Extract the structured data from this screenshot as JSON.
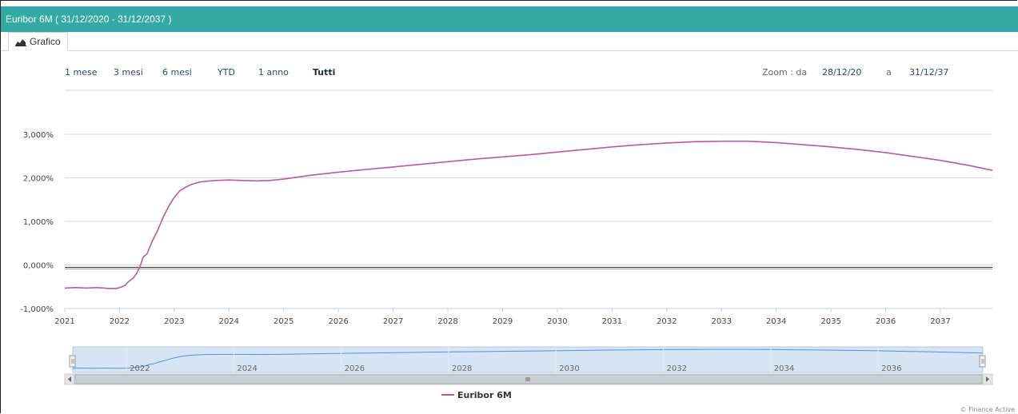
{
  "window": {
    "title": "Euribor 6M ( 31/12/2020 - 31/12/2037 )"
  },
  "tabs": [
    {
      "label": "Grafico",
      "icon": "area-chart-icon",
      "active": true
    }
  ],
  "range_selector": {
    "buttons": [
      "1 mese",
      "3 mesi",
      "6 mesi",
      "YTD",
      "1 anno",
      "Tutti"
    ],
    "active": "Tutti",
    "zoom_label": "Zoom : da",
    "from": "28/12/20",
    "to_label": "a",
    "to": "31/12/37"
  },
  "colors": {
    "header": "#33aaa4",
    "series": "#c0569b",
    "navigator_line": "#5b8fd1",
    "navigator_fill": "#d6e4f5"
  },
  "chart_data": {
    "type": "line",
    "title": "",
    "xlabel": "",
    "ylabel": "",
    "ylim": [
      -1.0,
      3.0
    ],
    "yticks": [
      "-1,000%",
      "0,000%",
      "1,000%",
      "2,000%",
      "3,000%"
    ],
    "yticks_values": [
      -1,
      0,
      1,
      2,
      3
    ],
    "xticks": [
      "2021",
      "2022",
      "2023",
      "2024",
      "2025",
      "2026",
      "2027",
      "2028",
      "2029",
      "2030",
      "2031",
      "2032",
      "2033",
      "2034",
      "2035",
      "2036",
      "2037"
    ],
    "xlim": [
      2021.0,
      2037.95
    ],
    "grid": true,
    "legend": "bottom-center",
    "series": [
      {
        "name": "Euribor 6M",
        "x": [
          2021.0,
          2021.2,
          2021.4,
          2021.6,
          2021.8,
          2021.95,
          2022.05,
          2022.1,
          2022.15,
          2022.2,
          2022.25,
          2022.3,
          2022.35,
          2022.4,
          2022.42,
          2022.45,
          2022.5,
          2022.55,
          2022.6,
          2022.7,
          2022.8,
          2022.9,
          2023.0,
          2023.1,
          2023.2,
          2023.3,
          2023.4,
          2023.5,
          2023.75,
          2024.0,
          2024.25,
          2024.5,
          2024.75,
          2025.0,
          2025.5,
          2026.0,
          2026.5,
          2027.0,
          2027.5,
          2028.0,
          2028.5,
          2029.0,
          2029.5,
          2030.0,
          2030.5,
          2031.0,
          2031.5,
          2032.0,
          2032.5,
          2033.0,
          2033.5,
          2034.0,
          2034.5,
          2035.0,
          2035.5,
          2036.0,
          2036.5,
          2037.0,
          2037.5,
          2037.95
        ],
        "values": [
          -0.53,
          -0.52,
          -0.53,
          -0.52,
          -0.54,
          -0.54,
          -0.5,
          -0.47,
          -0.4,
          -0.35,
          -0.3,
          -0.22,
          -0.1,
          0.05,
          0.15,
          0.2,
          0.25,
          0.4,
          0.55,
          0.8,
          1.1,
          1.35,
          1.55,
          1.7,
          1.78,
          1.84,
          1.88,
          1.91,
          1.94,
          1.95,
          1.94,
          1.93,
          1.94,
          1.97,
          2.06,
          2.13,
          2.19,
          2.25,
          2.31,
          2.37,
          2.43,
          2.48,
          2.53,
          2.59,
          2.65,
          2.71,
          2.76,
          2.8,
          2.83,
          2.84,
          2.84,
          2.81,
          2.76,
          2.71,
          2.65,
          2.58,
          2.49,
          2.4,
          2.29,
          2.17
        ]
      }
    ],
    "navigator": {
      "labels": [
        "2022",
        "2024",
        "2026",
        "2028",
        "2030",
        "2032",
        "2034",
        "2036"
      ]
    }
  },
  "credits": "© Finance Active"
}
